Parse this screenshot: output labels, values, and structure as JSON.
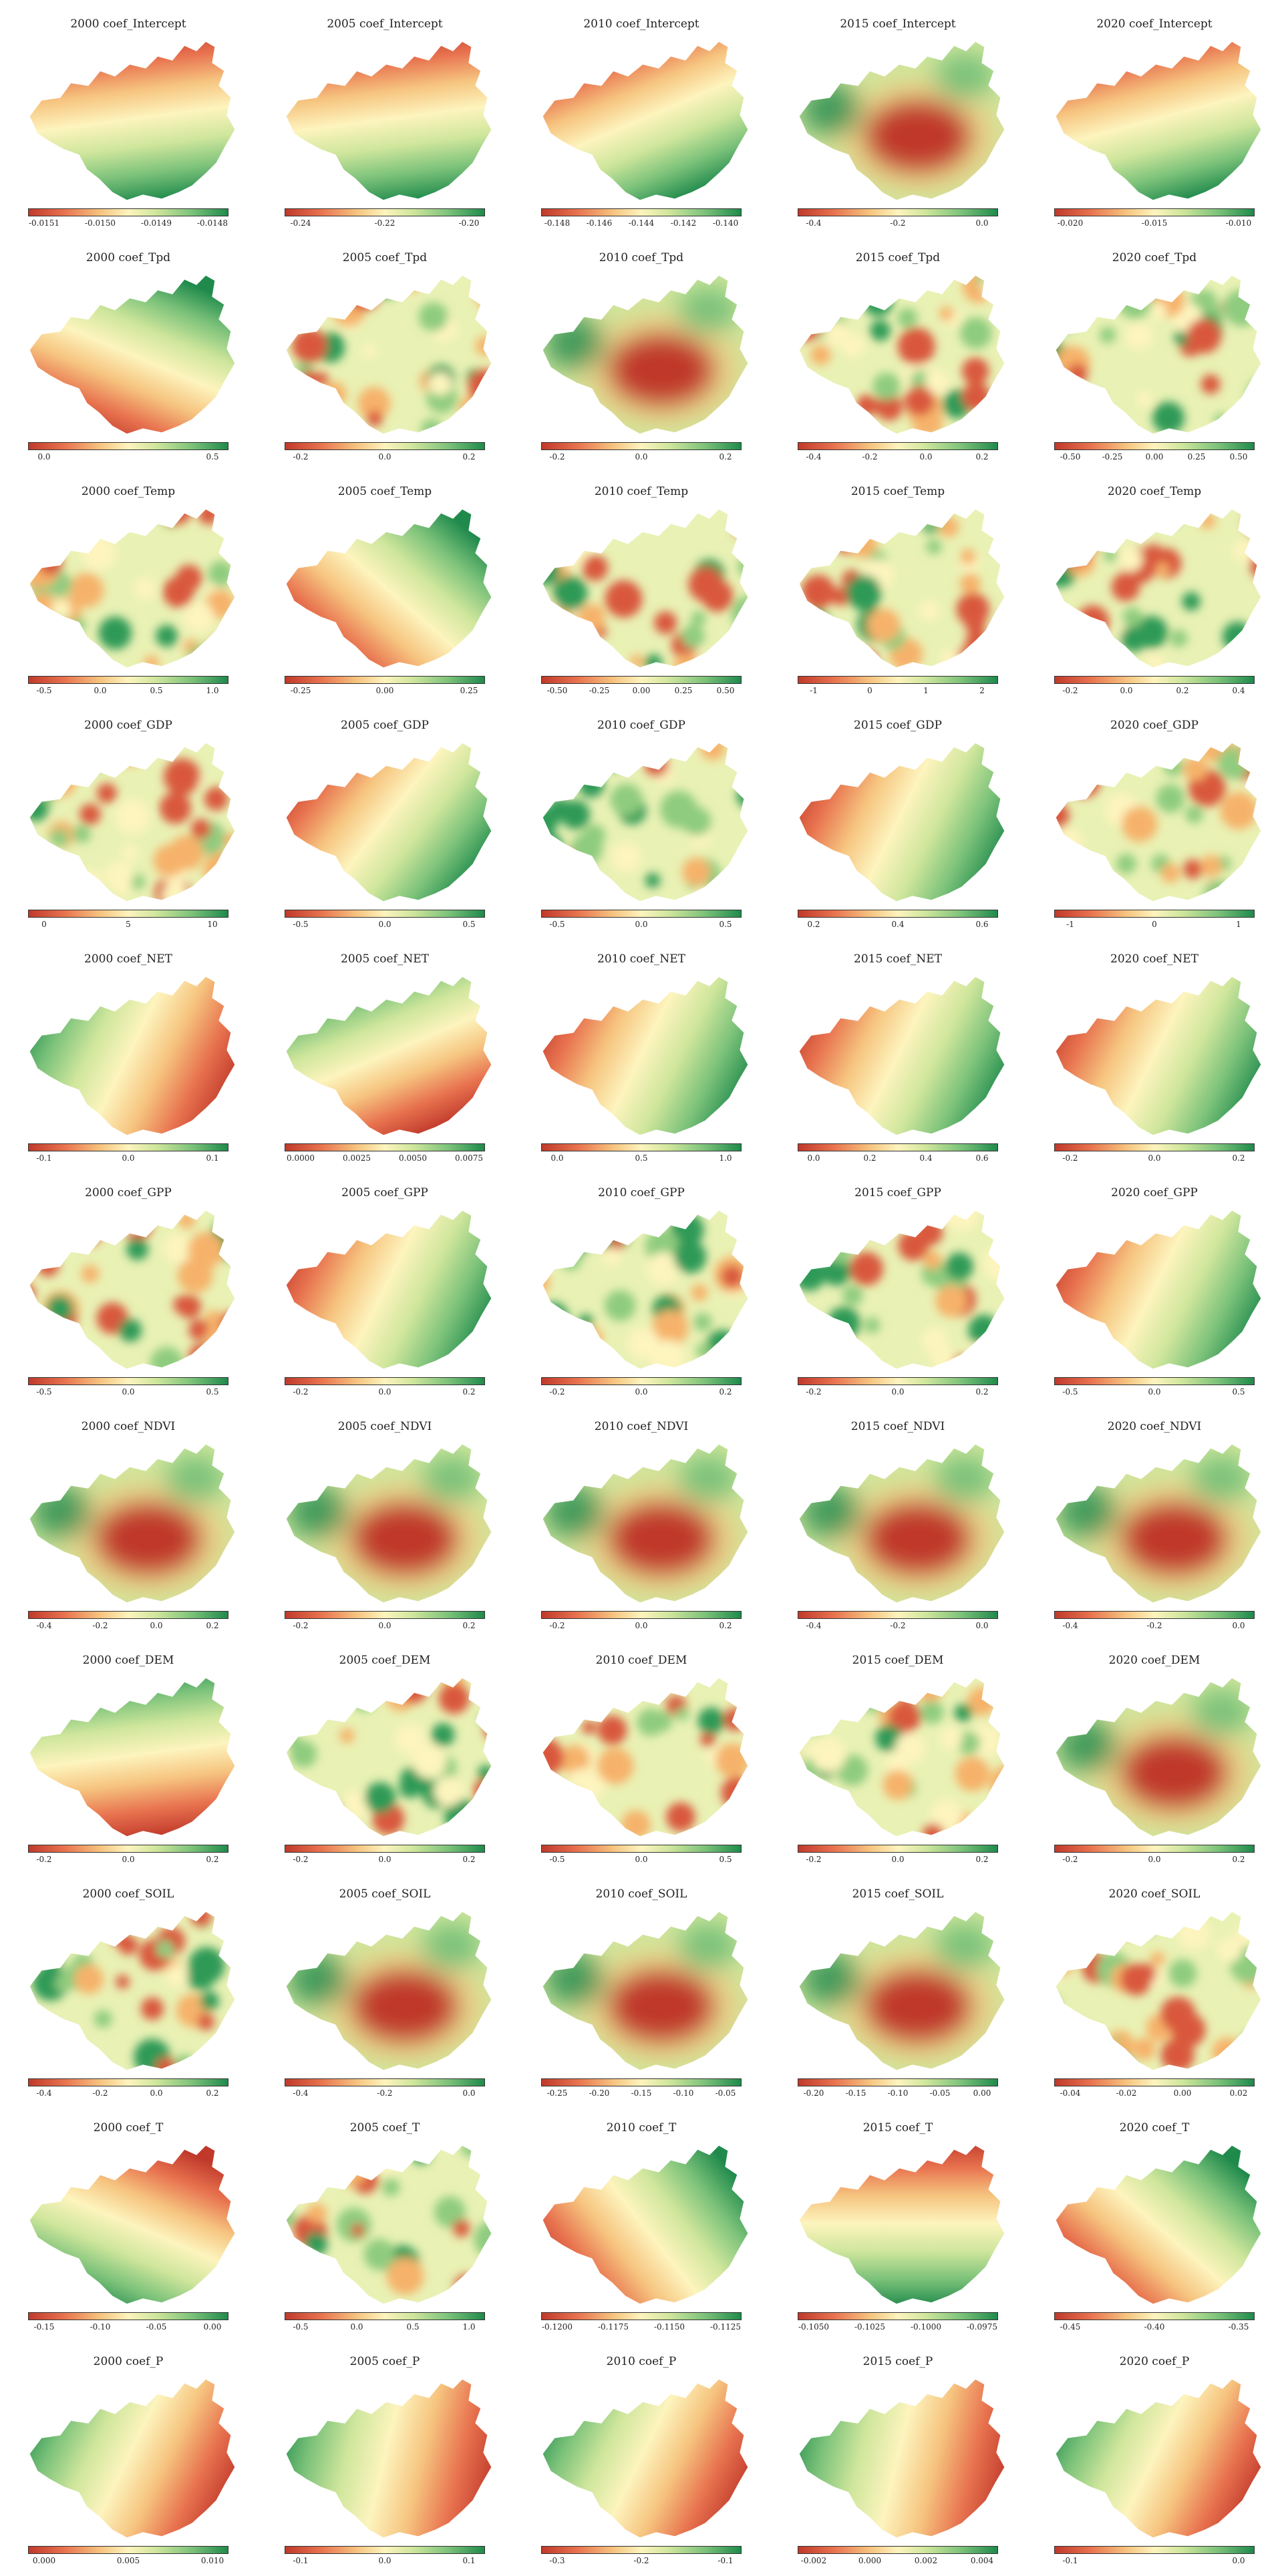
{
  "colormap": {
    "name": "RdYlGn",
    "stops": [
      "#c0392b",
      "#e8734f",
      "#f6c47f",
      "#fdf4be",
      "#cfe69c",
      "#7cc27a",
      "#1f8a4c"
    ]
  },
  "chart_data": [
    {
      "type": "heatmap",
      "title": "2000 coef_Intercept",
      "pattern": "band",
      "angle": 80,
      "direction": 1,
      "colorbar_ticks": [
        "-0.0151",
        "-0.0150",
        "-0.0149",
        "-0.0148"
      ]
    },
    {
      "type": "heatmap",
      "title": "2005 coef_Intercept",
      "pattern": "band",
      "angle": 80,
      "direction": 1,
      "colorbar_ticks": [
        "-0.24",
        "-0.22",
        "-0.20"
      ]
    },
    {
      "type": "heatmap",
      "title": "2010 coef_Intercept",
      "pattern": "band",
      "angle": 60,
      "direction": 1,
      "colorbar_ticks": [
        "-0.148",
        "-0.146",
        "-0.144",
        "-0.142",
        "-0.140"
      ]
    },
    {
      "type": "heatmap",
      "title": "2015 coef_Intercept",
      "pattern": "blob",
      "angle": 30,
      "direction": 1,
      "colorbar_ticks": [
        "-0.4",
        "-0.2",
        "0.0"
      ]
    },
    {
      "type": "heatmap",
      "title": "2020 coef_Intercept",
      "pattern": "band",
      "angle": 70,
      "direction": 1,
      "colorbar_ticks": [
        "-0.020",
        "-0.015",
        "-0.010"
      ]
    },
    {
      "type": "heatmap",
      "title": "2000 coef_Tpd",
      "pattern": "band",
      "angle": 300,
      "direction": 1,
      "colorbar_ticks": [
        "0.0",
        "0.5"
      ]
    },
    {
      "type": "heatmap",
      "title": "2005 coef_Tpd",
      "pattern": "noise",
      "angle": 0,
      "direction": 1,
      "colorbar_ticks": [
        "-0.2",
        "0.0",
        "0.2"
      ]
    },
    {
      "type": "heatmap",
      "title": "2010 coef_Tpd",
      "pattern": "blob",
      "angle": 0,
      "direction": 1,
      "colorbar_ticks": [
        "-0.2",
        "0.0",
        "0.2"
      ]
    },
    {
      "type": "heatmap",
      "title": "2015 coef_Tpd",
      "pattern": "noise",
      "angle": 0,
      "direction": 1,
      "colorbar_ticks": [
        "-0.4",
        "-0.2",
        "0.0",
        "0.2"
      ]
    },
    {
      "type": "heatmap",
      "title": "2020 coef_Tpd",
      "pattern": "noise",
      "angle": 0,
      "direction": 1,
      "colorbar_ticks": [
        "-0.50",
        "-0.25",
        "0.00",
        "0.25",
        "0.50"
      ]
    },
    {
      "type": "heatmap",
      "title": "2000 coef_Temp",
      "pattern": "noise",
      "angle": 0,
      "direction": 1,
      "colorbar_ticks": [
        "-0.5",
        "0.0",
        "0.5",
        "1.0"
      ]
    },
    {
      "type": "heatmap",
      "title": "2005 coef_Temp",
      "pattern": "band",
      "angle": 320,
      "direction": 1,
      "colorbar_ticks": [
        "-0.25",
        "0.00",
        "0.25"
      ]
    },
    {
      "type": "heatmap",
      "title": "2010 coef_Temp",
      "pattern": "noise",
      "angle": 0,
      "direction": 1,
      "colorbar_ticks": [
        "-0.50",
        "-0.25",
        "0.00",
        "0.25",
        "0.50"
      ]
    },
    {
      "type": "heatmap",
      "title": "2015 coef_Temp",
      "pattern": "noise",
      "angle": 0,
      "direction": 1,
      "colorbar_ticks": [
        "-1",
        "0",
        "1",
        "2"
      ]
    },
    {
      "type": "heatmap",
      "title": "2020 coef_Temp",
      "pattern": "noise",
      "angle": 0,
      "direction": 1,
      "colorbar_ticks": [
        "-0.2",
        "0.0",
        "0.2",
        "0.4"
      ]
    },
    {
      "type": "heatmap",
      "title": "2000 coef_GDP",
      "pattern": "noise",
      "angle": 0,
      "direction": 1,
      "colorbar_ticks": [
        "0",
        "5",
        "10"
      ]
    },
    {
      "type": "heatmap",
      "title": "2005 coef_GDP",
      "pattern": "band",
      "angle": 210,
      "direction": -1,
      "colorbar_ticks": [
        "-0.5",
        "0.0",
        "0.5"
      ]
    },
    {
      "type": "heatmap",
      "title": "2010 coef_GDP",
      "pattern": "noise",
      "angle": 0,
      "direction": 1,
      "colorbar_ticks": [
        "-0.5",
        "0.0",
        "0.5"
      ]
    },
    {
      "type": "heatmap",
      "title": "2015 coef_GDP",
      "pattern": "band",
      "angle": 200,
      "direction": -1,
      "colorbar_ticks": [
        "0.2",
        "0.4",
        "0.6"
      ]
    },
    {
      "type": "heatmap",
      "title": "2020 coef_GDP",
      "pattern": "noise",
      "angle": 0,
      "direction": 1,
      "colorbar_ticks": [
        "-1",
        "0",
        "1"
      ]
    },
    {
      "type": "heatmap",
      "title": "2000 coef_NET",
      "pattern": "band",
      "angle": 20,
      "direction": -1,
      "colorbar_ticks": [
        "-0.1",
        "0.0",
        "0.1"
      ]
    },
    {
      "type": "heatmap",
      "title": "2005 coef_NET",
      "pattern": "band",
      "angle": 60,
      "direction": -1,
      "colorbar_ticks": [
        "0.0000",
        "0.0025",
        "0.0050",
        "0.0075"
      ]
    },
    {
      "type": "heatmap",
      "title": "2010 coef_NET",
      "pattern": "band",
      "angle": 200,
      "direction": -1,
      "colorbar_ticks": [
        "0.0",
        "0.5",
        "1.0"
      ]
    },
    {
      "type": "heatmap",
      "title": "2015 coef_NET",
      "pattern": "band",
      "angle": 200,
      "direction": -1,
      "colorbar_ticks": [
        "0.0",
        "0.2",
        "0.4",
        "0.6"
      ]
    },
    {
      "type": "heatmap",
      "title": "2020 coef_NET",
      "pattern": "band",
      "angle": 200,
      "direction": -1,
      "colorbar_ticks": [
        "-0.2",
        "0.0",
        "0.2"
      ]
    },
    {
      "type": "heatmap",
      "title": "2000 coef_GPP",
      "pattern": "noise",
      "angle": 0,
      "direction": 1,
      "colorbar_ticks": [
        "-0.5",
        "0.0",
        "0.5"
      ]
    },
    {
      "type": "heatmap",
      "title": "2005 coef_GPP",
      "pattern": "band",
      "angle": 200,
      "direction": -1,
      "colorbar_ticks": [
        "-0.2",
        "0.0",
        "0.2"
      ]
    },
    {
      "type": "heatmap",
      "title": "2010 coef_GPP",
      "pattern": "noise",
      "angle": 0,
      "direction": 1,
      "colorbar_ticks": [
        "-0.2",
        "0.0",
        "0.2"
      ]
    },
    {
      "type": "heatmap",
      "title": "2015 coef_GPP",
      "pattern": "noise",
      "angle": 0,
      "direction": 1,
      "colorbar_ticks": [
        "-0.2",
        "0.0",
        "0.2"
      ]
    },
    {
      "type": "heatmap",
      "title": "2020 coef_GPP",
      "pattern": "band",
      "angle": 200,
      "direction": -1,
      "colorbar_ticks": [
        "-0.5",
        "0.0",
        "0.5"
      ]
    },
    {
      "type": "heatmap",
      "title": "2000 coef_NDVI",
      "pattern": "blob",
      "angle": 0,
      "direction": 1,
      "colorbar_ticks": [
        "-0.4",
        "-0.2",
        "0.0",
        "0.2"
      ]
    },
    {
      "type": "heatmap",
      "title": "2005 coef_NDVI",
      "pattern": "blob",
      "angle": 0,
      "direction": 1,
      "colorbar_ticks": [
        "-0.2",
        "0.0",
        "0.2"
      ]
    },
    {
      "type": "heatmap",
      "title": "2010 coef_NDVI",
      "pattern": "blob",
      "angle": 0,
      "direction": 1,
      "colorbar_ticks": [
        "-0.2",
        "0.0",
        "0.2"
      ]
    },
    {
      "type": "heatmap",
      "title": "2015 coef_NDVI",
      "pattern": "blob",
      "angle": 0,
      "direction": 1,
      "colorbar_ticks": [
        "-0.4",
        "-0.2",
        "0.0"
      ]
    },
    {
      "type": "heatmap",
      "title": "2020 coef_NDVI",
      "pattern": "blob",
      "angle": 0,
      "direction": 1,
      "colorbar_ticks": [
        "-0.4",
        "-0.2",
        "0.0"
      ]
    },
    {
      "type": "heatmap",
      "title": "2000 coef_DEM",
      "pattern": "band",
      "angle": 80,
      "direction": -1,
      "colorbar_ticks": [
        "-0.2",
        "0.0",
        "0.2"
      ]
    },
    {
      "type": "heatmap",
      "title": "2005 coef_DEM",
      "pattern": "noise",
      "angle": 0,
      "direction": 1,
      "colorbar_ticks": [
        "-0.2",
        "0.0",
        "0.2"
      ]
    },
    {
      "type": "heatmap",
      "title": "2010 coef_DEM",
      "pattern": "noise",
      "angle": 0,
      "direction": 1,
      "colorbar_ticks": [
        "-0.5",
        "0.0",
        "0.5"
      ]
    },
    {
      "type": "heatmap",
      "title": "2015 coef_DEM",
      "pattern": "noise",
      "angle": 0,
      "direction": 1,
      "colorbar_ticks": [
        "-0.2",
        "0.0",
        "0.2"
      ]
    },
    {
      "type": "heatmap",
      "title": "2020 coef_DEM",
      "pattern": "blob",
      "angle": 0,
      "direction": 1,
      "colorbar_ticks": [
        "-0.2",
        "0.0",
        "0.2"
      ]
    },
    {
      "type": "heatmap",
      "title": "2000 coef_SOIL",
      "pattern": "noise",
      "angle": 0,
      "direction": 1,
      "colorbar_ticks": [
        "-0.4",
        "-0.2",
        "0.0",
        "0.2"
      ]
    },
    {
      "type": "heatmap",
      "title": "2005 coef_SOIL",
      "pattern": "blob",
      "angle": 0,
      "direction": 1,
      "colorbar_ticks": [
        "-0.4",
        "-0.2",
        "0.0"
      ]
    },
    {
      "type": "heatmap",
      "title": "2010 coef_SOIL",
      "pattern": "blob",
      "angle": 0,
      "direction": 1,
      "colorbar_ticks": [
        "-0.25",
        "-0.20",
        "-0.15",
        "-0.10",
        "-0.05"
      ]
    },
    {
      "type": "heatmap",
      "title": "2015 coef_SOIL",
      "pattern": "blob",
      "angle": 0,
      "direction": 1,
      "colorbar_ticks": [
        "-0.20",
        "-0.15",
        "-0.10",
        "-0.05",
        "0.00"
      ]
    },
    {
      "type": "heatmap",
      "title": "2020 coef_SOIL",
      "pattern": "noise",
      "angle": 0,
      "direction": 1,
      "colorbar_ticks": [
        "-0.04",
        "-0.02",
        "0.00",
        "0.02"
      ]
    },
    {
      "type": "heatmap",
      "title": "2000 coef_T",
      "pattern": "band",
      "angle": 300,
      "direction": -1,
      "colorbar_ticks": [
        "-0.15",
        "-0.10",
        "-0.05",
        "0.00"
      ]
    },
    {
      "type": "heatmap",
      "title": "2005 coef_T",
      "pattern": "noise",
      "angle": 0,
      "direction": 1,
      "colorbar_ticks": [
        "-0.5",
        "0.0",
        "0.5",
        "1.0"
      ]
    },
    {
      "type": "heatmap",
      "title": "2010 coef_T",
      "pattern": "band",
      "angle": 330,
      "direction": 1,
      "colorbar_ticks": [
        "-0.1200",
        "-0.1175",
        "-0.1150",
        "-0.1125"
      ]
    },
    {
      "type": "heatmap",
      "title": "2015 coef_T",
      "pattern": "band",
      "angle": 90,
      "direction": 1,
      "colorbar_ticks": [
        "-0.1050",
        "-0.1025",
        "-0.1000",
        "-0.0975"
      ]
    },
    {
      "type": "heatmap",
      "title": "2020 coef_T",
      "pattern": "band",
      "angle": 320,
      "direction": 1,
      "colorbar_ticks": [
        "-0.45",
        "-0.40",
        "-0.35"
      ]
    },
    {
      "type": "heatmap",
      "title": "2000 coef_P",
      "pattern": "band",
      "angle": 20,
      "direction": -1,
      "colorbar_ticks": [
        "0.000",
        "0.005",
        "0.010"
      ]
    },
    {
      "type": "heatmap",
      "title": "2005 coef_P",
      "pattern": "band",
      "angle": 10,
      "direction": -1,
      "colorbar_ticks": [
        "-0.1",
        "0.0",
        "0.1"
      ]
    },
    {
      "type": "heatmap",
      "title": "2010 coef_P",
      "pattern": "band",
      "angle": 20,
      "direction": -1,
      "colorbar_ticks": [
        "-0.3",
        "-0.2",
        "-0.1"
      ]
    },
    {
      "type": "heatmap",
      "title": "2015 coef_P",
      "pattern": "band",
      "angle": 10,
      "direction": -1,
      "colorbar_ticks": [
        "-0.002",
        "0.000",
        "0.002",
        "0.004"
      ]
    },
    {
      "type": "heatmap",
      "title": "2020 coef_P",
      "pattern": "band",
      "angle": 20,
      "direction": -1,
      "colorbar_ticks": [
        "-0.1",
        "0.0"
      ]
    }
  ]
}
